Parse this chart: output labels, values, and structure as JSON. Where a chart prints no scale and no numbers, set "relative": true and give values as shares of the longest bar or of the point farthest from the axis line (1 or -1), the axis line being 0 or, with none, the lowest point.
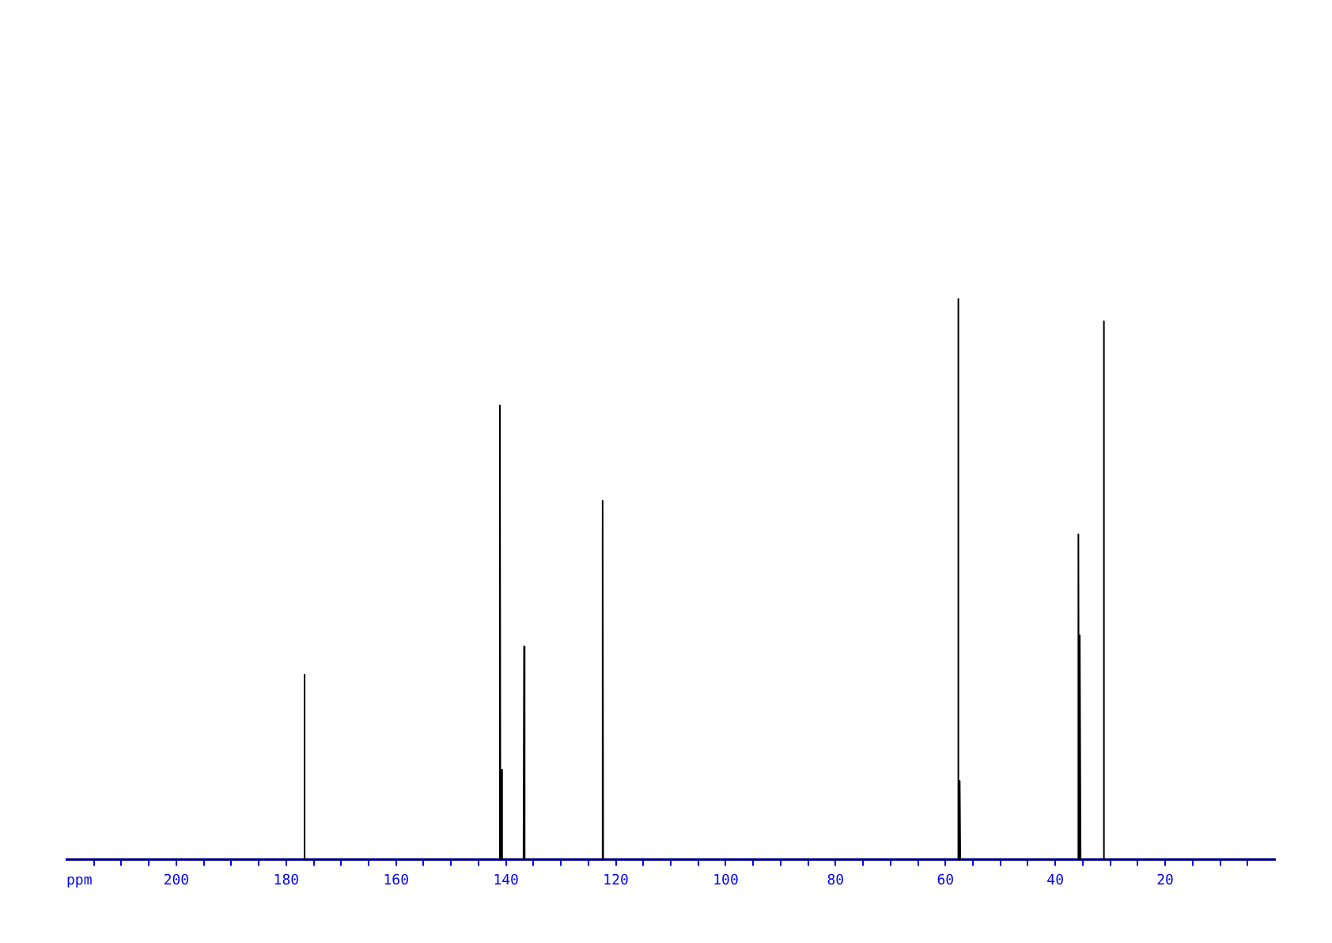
{
  "chart_data": {
    "type": "line",
    "xlabel": "ppm",
    "relative": true,
    "marker": "none",
    "grid": false,
    "legend": false,
    "xlim": [
      220,
      0
    ],
    "xticks": [
      {
        "value": 215,
        "label": null
      },
      {
        "value": 210,
        "label": null
      },
      {
        "value": 205,
        "label": null
      },
      200,
      {
        "value": 195,
        "label": null
      },
      {
        "value": 190,
        "label": null
      },
      {
        "value": 185,
        "label": null
      },
      180,
      {
        "value": 175,
        "label": null
      },
      {
        "value": 170,
        "label": null
      },
      {
        "value": 165,
        "label": null
      },
      160,
      {
        "value": 155,
        "label": null
      },
      {
        "value": 150,
        "label": null
      },
      {
        "value": 145,
        "label": null
      },
      140,
      {
        "value": 135,
        "label": null
      },
      {
        "value": 130,
        "label": null
      },
      {
        "value": 125,
        "label": null
      },
      120,
      {
        "value": 115,
        "label": null
      },
      {
        "value": 110,
        "label": null
      },
      {
        "value": 105,
        "label": null
      },
      100,
      {
        "value": 95,
        "label": null
      },
      {
        "value": 90,
        "label": null
      },
      {
        "value": 85,
        "label": null
      },
      80,
      {
        "value": 75,
        "label": null
      },
      {
        "value": 70,
        "label": null
      },
      {
        "value": 65,
        "label": null
      },
      60,
      {
        "value": 55,
        "label": null
      },
      {
        "value": 50,
        "label": null
      },
      {
        "value": 45,
        "label": null
      },
      40,
      {
        "value": 35,
        "label": null
      },
      {
        "value": 30,
        "label": null
      },
      {
        "value": 25,
        "label": null
      },
      20,
      {
        "value": 15,
        "label": null
      },
      {
        "value": 10,
        "label": null
      },
      {
        "value": 5,
        "label": null
      }
    ],
    "series": [
      {
        "color": "#000000",
        "x": [
          220,
          176.8,
          176.7,
          176.6,
          141.2,
          141.1,
          141.0,
          140.9,
          140.8,
          140.7,
          136.8,
          136.7,
          136.6,
          122.5,
          122.4,
          122.3,
          57.8,
          57.7,
          57.6,
          57.5,
          57.4,
          57.3,
          35.9,
          35.8,
          35.7,
          35.6,
          35.5,
          35.4,
          31.3,
          31.2,
          31.1,
          0
        ],
        "values": [
          0,
          0,
          0.33,
          0,
          0,
          0.81,
          0,
          0,
          0.16,
          0,
          0,
          0.38,
          0,
          0,
          0.64,
          0,
          0,
          1,
          0,
          0,
          0.14,
          0,
          0,
          0.58,
          0,
          0,
          0.4,
          0,
          0,
          0.96,
          0,
          0
        ]
      }
    ]
  }
}
